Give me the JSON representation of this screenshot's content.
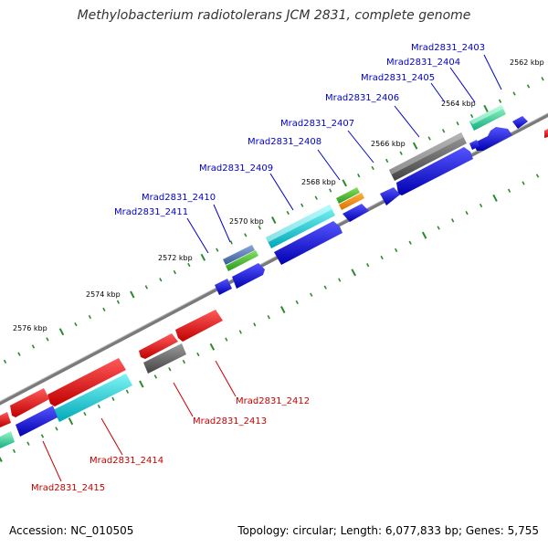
{
  "title": "Methylobacterium radiotolerans JCM 2831, complete genome",
  "accession": "Accession: NC_010505",
  "stats": "Topology: circular; Length: 6,077,833 bp; Genes: 5,755",
  "colors": {
    "label_top": "#0000c8",
    "label_bottom": "#c80000",
    "backbone": "#888888",
    "ticks": "#2a8a2a"
  },
  "ticks": [
    {
      "label": "2562 kbp"
    },
    {
      "label": "2564 kbp"
    },
    {
      "label": "2566 kbp"
    },
    {
      "label": "2568 kbp"
    },
    {
      "label": "2570 kbp"
    },
    {
      "label": "2572 kbp"
    },
    {
      "label": "2574 kbp"
    },
    {
      "label": "2576 kbp"
    }
  ],
  "genes_top": [
    {
      "label": "Mrad2831_2403",
      "color": "teal-green"
    },
    {
      "label": "Mrad2831_2404",
      "color": "gray"
    },
    {
      "label": "Mrad2831_2405",
      "color": "blue"
    },
    {
      "label": "Mrad2831_2406",
      "color": "blue"
    },
    {
      "label": "Mrad2831_2407",
      "color": "green-orange"
    },
    {
      "label": "Mrad2831_2408",
      "color": "cyan"
    },
    {
      "label": "Mrad2831_2409",
      "color": "blue"
    },
    {
      "label": "Mrad2831_2410",
      "color": "steel-blue"
    },
    {
      "label": "Mrad2831_2411",
      "color": "green"
    }
  ],
  "genes_bottom": [
    {
      "label": "Mrad2831_2412",
      "color": "red"
    },
    {
      "label": "Mrad2831_2413",
      "color": "gray"
    },
    {
      "label": "Mrad2831_2414",
      "color": "cyan"
    },
    {
      "label": "Mrad2831_2415",
      "color": "red"
    }
  ]
}
